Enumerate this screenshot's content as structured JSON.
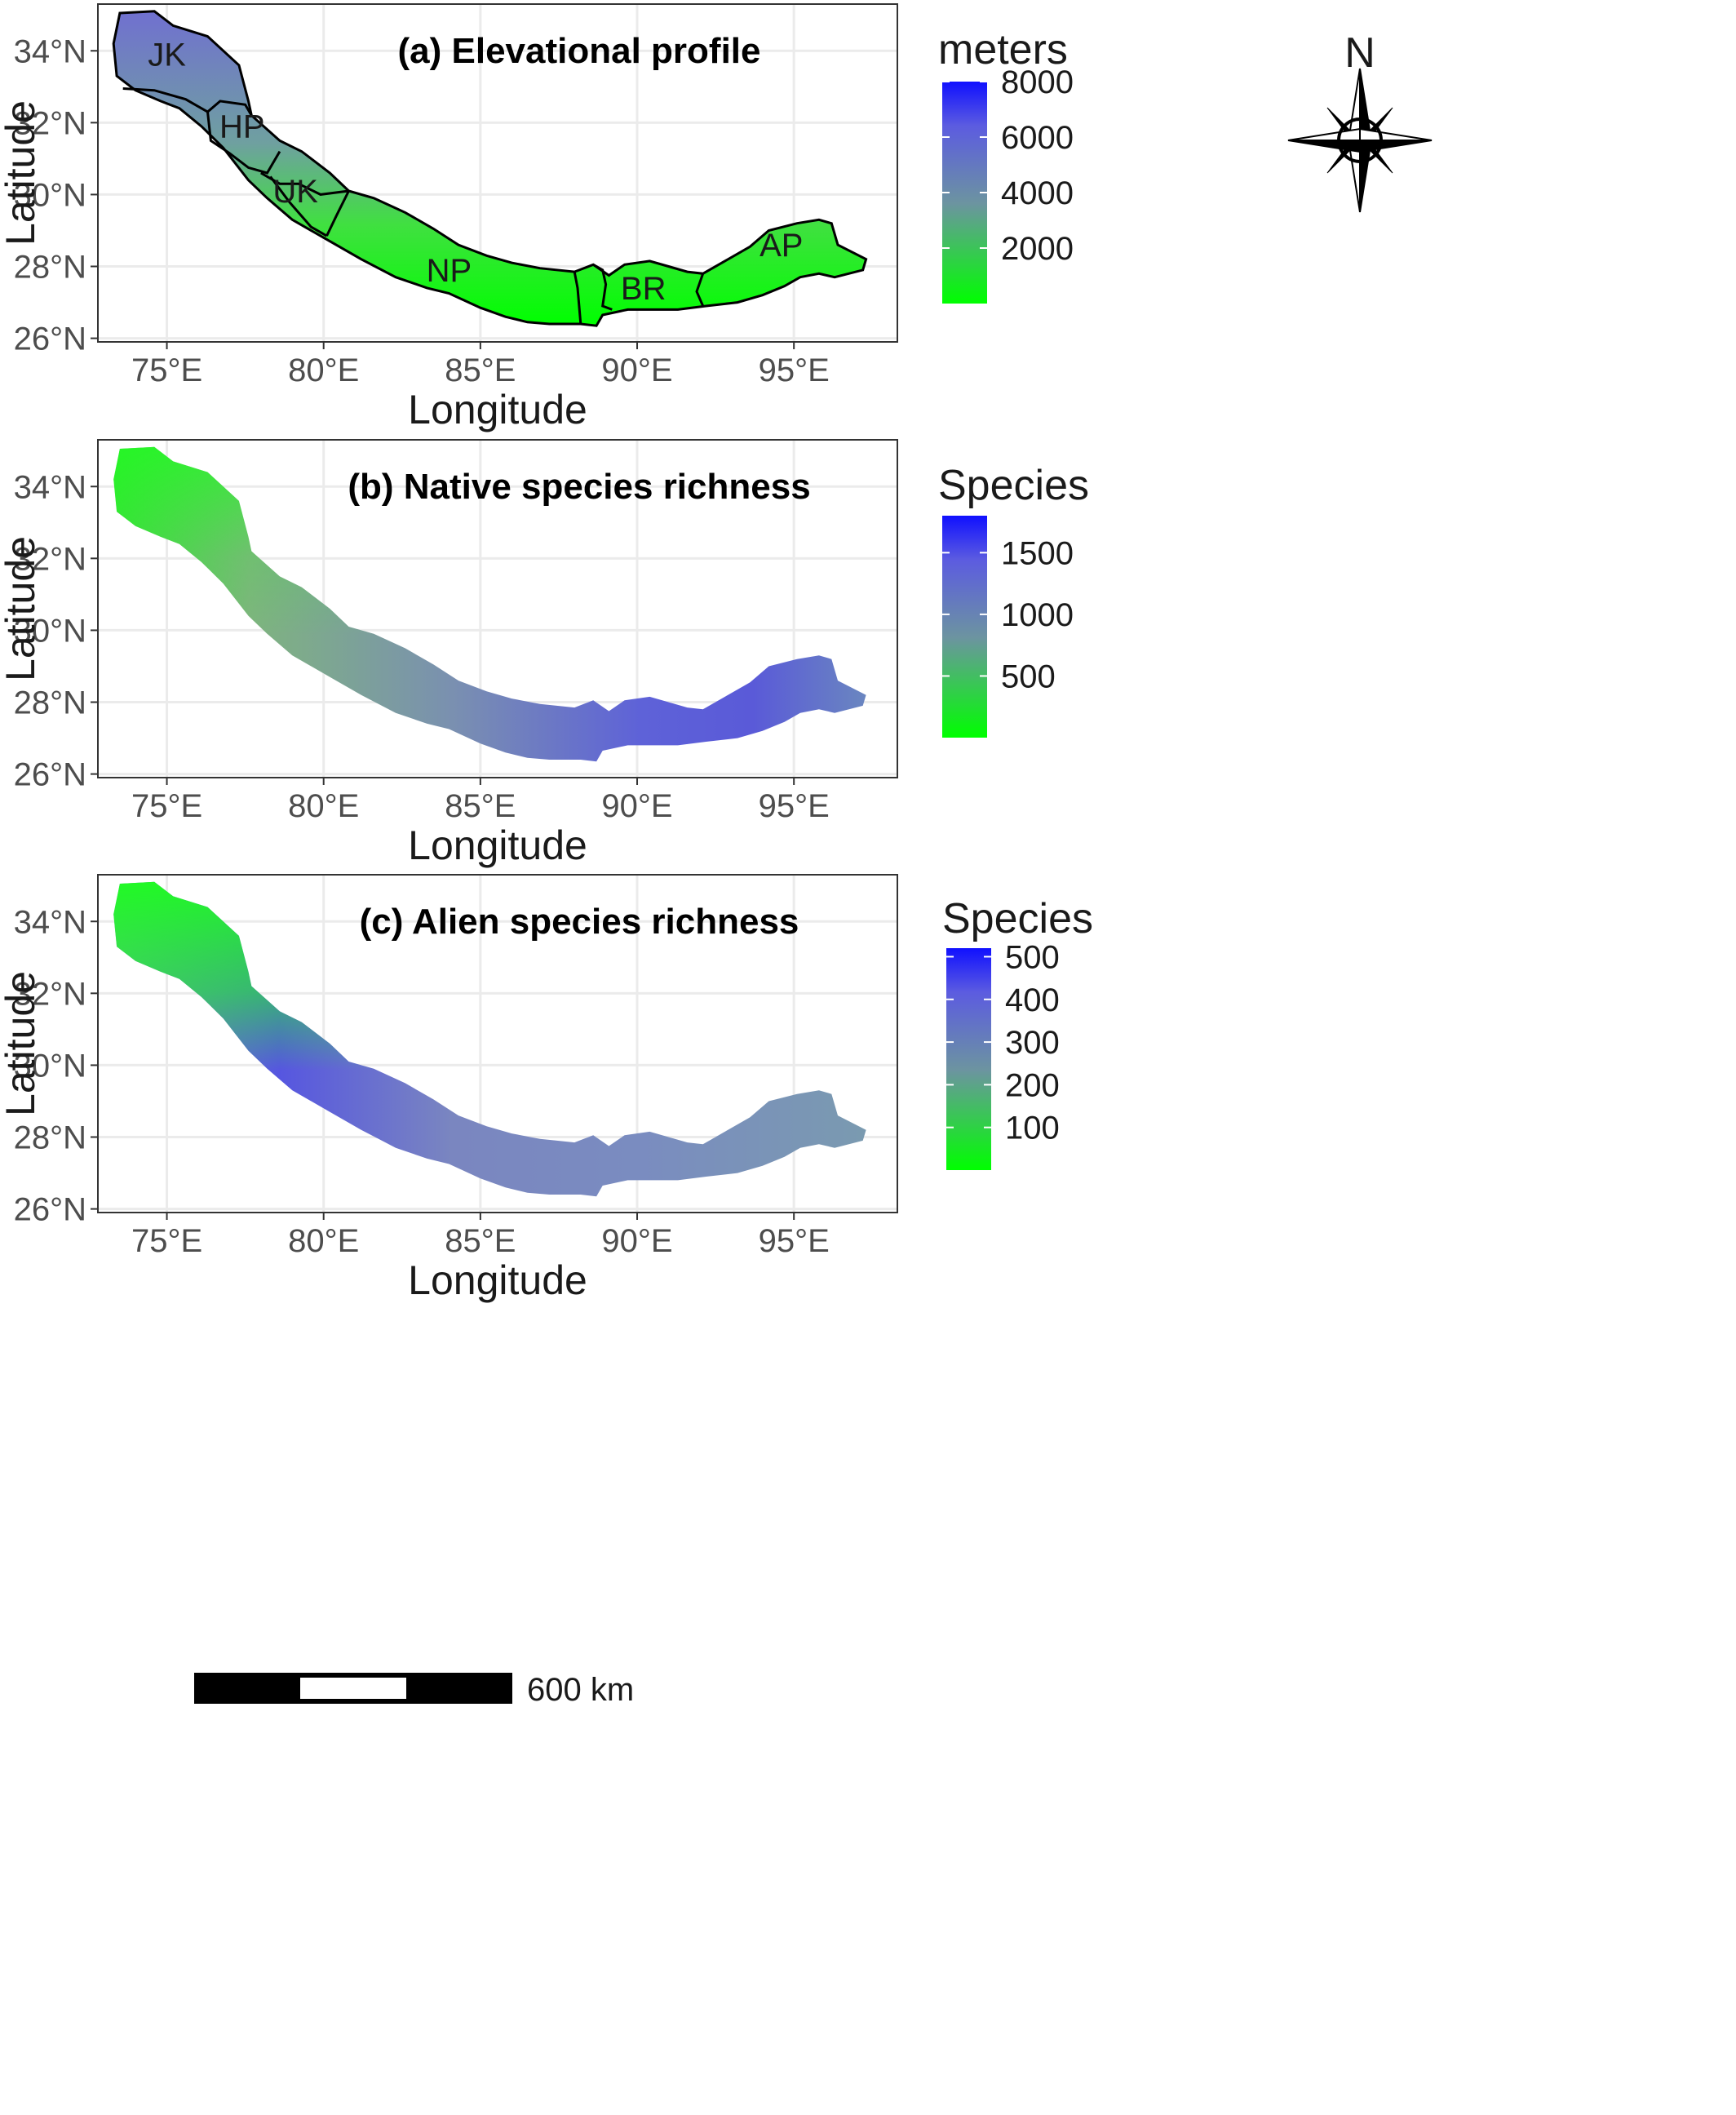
{
  "figure": {
    "panels": [
      {
        "id": "a",
        "title": "(a) Elevational profile",
        "xlabel": "Longitude",
        "ylabel": "Latitude",
        "legend": {
          "title": "meters",
          "ticks": [
            "8000",
            "6000",
            "4000",
            "2000"
          ],
          "tick_values": [
            8000,
            6000,
            4000,
            2000
          ],
          "range": [
            0,
            8000
          ]
        },
        "regions": [
          "JK",
          "HP",
          "UK",
          "NP",
          "BR",
          "AP"
        ],
        "compass_label": "N"
      },
      {
        "id": "b",
        "title": "(b) Native species richness",
        "xlabel": "Longitude",
        "ylabel": "Latitude",
        "legend": {
          "title": "Species",
          "ticks": [
            "1500",
            "1000",
            "500"
          ],
          "tick_values": [
            1500,
            1000,
            500
          ],
          "range": [
            0,
            1800
          ]
        }
      },
      {
        "id": "c",
        "title": "(c) Alien species richness",
        "xlabel": "Longitude",
        "ylabel": "Latitude",
        "legend": {
          "title": "Species",
          "ticks": [
            "500",
            "400",
            "300",
            "200",
            "100"
          ],
          "tick_values": [
            500,
            400,
            300,
            200,
            100
          ],
          "range": [
            0,
            520
          ]
        },
        "scalebar_label": "600 km"
      }
    ],
    "axes": {
      "x_ticks": [
        "75°E",
        "80°E",
        "85°E",
        "90°E",
        "95°E"
      ],
      "x_tick_values": [
        75,
        80,
        85,
        90,
        95
      ],
      "y_ticks": [
        "34°N",
        "32°N",
        "30°N",
        "28°N",
        "26°N"
      ],
      "y_tick_values": [
        34,
        32,
        30,
        28,
        26
      ],
      "xlim": [
        72.8,
        98.3
      ],
      "ylim": [
        25.9,
        35.3
      ]
    },
    "colors": {
      "low": "#00ff00",
      "mid": "#6c94a0",
      "high": "#0000ff",
      "border": "#000000",
      "grid": "#ebebeb"
    }
  }
}
